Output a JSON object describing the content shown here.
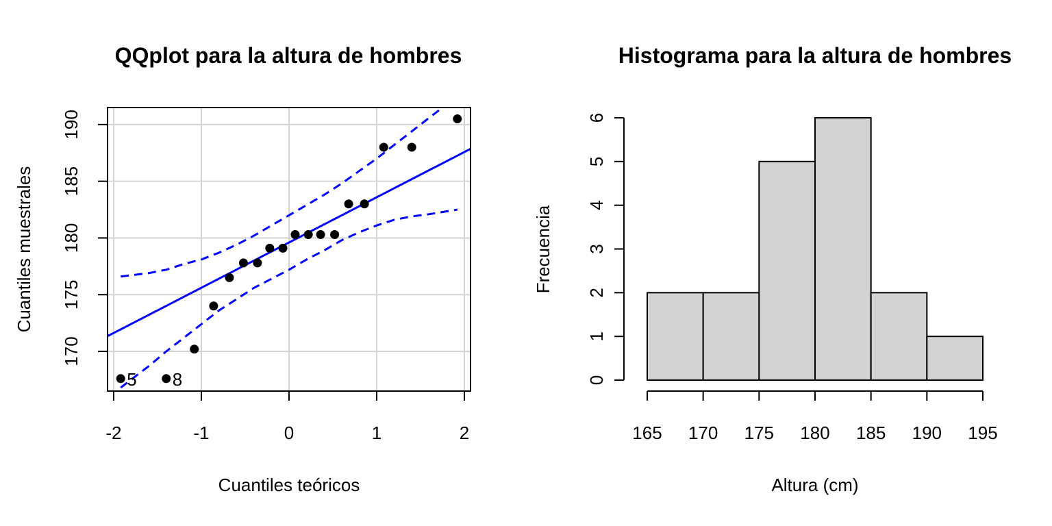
{
  "chart_data": [
    {
      "type": "scatter",
      "title": "QQplot para la altura de hombres",
      "xlabel": "Cuantiles teóricos",
      "ylabel": "Cuantiles muestrales",
      "xlim": [
        -2.07,
        2.07
      ],
      "ylim": [
        166.5,
        191.5
      ],
      "x_ticks": [
        -2,
        -1,
        0,
        1,
        2
      ],
      "x_tick_labels": [
        "-2",
        "-1",
        "0",
        "1",
        "2"
      ],
      "y_ticks": [
        170,
        175,
        180,
        185,
        190
      ],
      "y_tick_labels": [
        "170",
        "175",
        "180",
        "185",
        "190"
      ],
      "grid": true,
      "points": [
        {
          "x": -1.92,
          "y": 167.6,
          "label": "5"
        },
        {
          "x": -1.4,
          "y": 167.6,
          "label": "8"
        },
        {
          "x": -1.08,
          "y": 170.2
        },
        {
          "x": -0.86,
          "y": 174.0
        },
        {
          "x": -0.68,
          "y": 176.5
        },
        {
          "x": -0.52,
          "y": 177.8
        },
        {
          "x": -0.36,
          "y": 177.8
        },
        {
          "x": -0.22,
          "y": 179.1
        },
        {
          "x": -0.07,
          "y": 179.1
        },
        {
          "x": 0.07,
          "y": 180.3
        },
        {
          "x": 0.22,
          "y": 180.3
        },
        {
          "x": 0.36,
          "y": 180.3
        },
        {
          "x": 0.52,
          "y": 180.3
        },
        {
          "x": 0.68,
          "y": 183.0
        },
        {
          "x": 0.86,
          "y": 183.0
        },
        {
          "x": 1.08,
          "y": 188.0
        },
        {
          "x": 1.4,
          "y": 188.0
        },
        {
          "x": 1.92,
          "y": 190.5
        }
      ],
      "reference_line": {
        "intercept": 179.6,
        "slope": 3.99
      },
      "envelope": {
        "x": [
          -1.92,
          -1.6,
          -1.4,
          -1.2,
          -1.0,
          -0.8,
          -0.6,
          -0.4,
          -0.2,
          0.0,
          0.2,
          0.4,
          0.6,
          0.8,
          1.0,
          1.2,
          1.4,
          1.6,
          1.92
        ],
        "upper": [
          176.6,
          176.9,
          177.2,
          177.7,
          178.1,
          178.7,
          179.4,
          180.2,
          181.1,
          182.0,
          182.9,
          183.8,
          184.8,
          185.9,
          187.0,
          188.2,
          189.4,
          190.6,
          192.5
        ],
        "lower": [
          166.8,
          168.7,
          170.0,
          171.2,
          172.4,
          173.6,
          174.6,
          175.6,
          176.4,
          177.2,
          178.1,
          178.9,
          179.8,
          180.5,
          181.1,
          181.6,
          181.9,
          182.1,
          182.5
        ]
      },
      "colors": {
        "points": "#000000",
        "line": "#0000ff",
        "grid": "#d3d3d3"
      }
    },
    {
      "type": "bar",
      "title": "Histograma para la altura de hombres",
      "xlabel": "Altura (cm)",
      "ylabel": "Frecuencia",
      "breaks": [
        165,
        170,
        175,
        180,
        185,
        190,
        195
      ],
      "values": [
        2,
        2,
        5,
        6,
        2,
        1
      ],
      "x_ticks": [
        165,
        170,
        175,
        180,
        185,
        190,
        195
      ],
      "x_tick_labels": [
        "165",
        "170",
        "175",
        "180",
        "185",
        "190",
        "195"
      ],
      "y_ticks": [
        0,
        1,
        2,
        3,
        4,
        5,
        6
      ],
      "y_tick_labels": [
        "0",
        "1",
        "2",
        "3",
        "4",
        "5",
        "6"
      ],
      "ylim": [
        0,
        6
      ],
      "colors": {
        "bars": "#d3d3d3",
        "border": "#000000"
      }
    }
  ]
}
